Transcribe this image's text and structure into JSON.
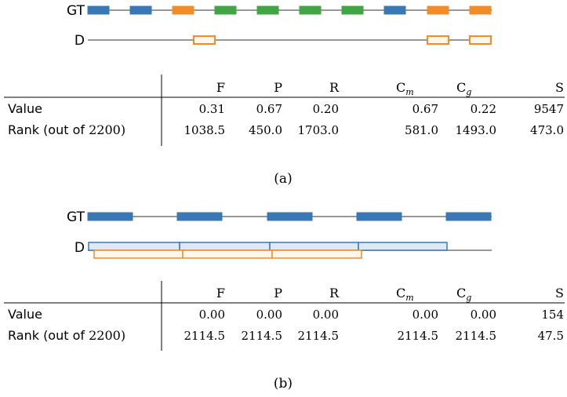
{
  "colors": {
    "blue": "#3a78b5",
    "blue_fill": "#dde9f5",
    "orange": "#f28c28",
    "orange_fill": "#fff6ec",
    "green": "#43a445",
    "line": "#777777",
    "rule": "#000000"
  },
  "panels": [
    {
      "caption": "(a)",
      "tracks": [
        {
          "label": "GT",
          "segments": [
            {
              "color": "blue",
              "fill": "solid"
            },
            {
              "color": "blue",
              "fill": "solid"
            },
            {
              "color": "orange",
              "fill": "solid"
            },
            {
              "color": "green",
              "fill": "solid"
            },
            {
              "color": "green",
              "fill": "solid"
            },
            {
              "color": "green",
              "fill": "solid"
            },
            {
              "color": "green",
              "fill": "solid"
            },
            {
              "color": "blue",
              "fill": "solid"
            },
            {
              "color": "orange",
              "fill": "solid"
            },
            {
              "color": "orange",
              "fill": "solid"
            }
          ]
        },
        {
          "label": "D",
          "segments": [
            {
              "color": "orange",
              "fill": "hollow"
            },
            {
              "color": "orange",
              "fill": "hollow"
            },
            {
              "color": "orange",
              "fill": "hollow"
            }
          ]
        }
      ],
      "table": {
        "columns": [
          "F",
          "P",
          "R",
          "C",
          "C",
          "S"
        ],
        "column_subscripts": [
          "",
          "",
          "",
          "m",
          "g",
          ""
        ],
        "rows": [
          {
            "label": "Value",
            "label_suffix": "",
            "cells": [
              "0.31",
              "0.67",
              "0.20",
              "0.67",
              "0.22",
              "9547"
            ]
          },
          {
            "label": "Rank (out of ",
            "label_suffix": "2200)",
            "cells": [
              "1038.5",
              "450.0",
              "1703.0",
              "581.0",
              "1493.0",
              "473.0"
            ]
          }
        ]
      }
    },
    {
      "caption": "(b)",
      "tracks": [
        {
          "label": "GT",
          "segments": [
            {
              "color": "blue",
              "fill": "solid"
            },
            {
              "color": "blue",
              "fill": "solid"
            },
            {
              "color": "blue",
              "fill": "solid"
            },
            {
              "color": "blue",
              "fill": "solid"
            },
            {
              "color": "blue",
              "fill": "solid"
            }
          ]
        },
        {
          "label": "D",
          "segments": [
            {
              "color": "blue",
              "fill": "light"
            },
            {
              "color": "blue",
              "fill": "light"
            },
            {
              "color": "blue",
              "fill": "light"
            },
            {
              "color": "blue",
              "fill": "light"
            },
            {
              "color": "orange",
              "fill": "hollow"
            },
            {
              "color": "orange",
              "fill": "hollow"
            },
            {
              "color": "orange",
              "fill": "hollow"
            }
          ]
        }
      ],
      "table": {
        "columns": [
          "F",
          "P",
          "R",
          "C",
          "C",
          "S"
        ],
        "column_subscripts": [
          "",
          "",
          "",
          "m",
          "g",
          ""
        ],
        "rows": [
          {
            "label": "Value",
            "label_suffix": "",
            "cells": [
              "0.00",
              "0.00",
              "0.00",
              "0.00",
              "0.00",
              "154"
            ]
          },
          {
            "label": "Rank (out of ",
            "label_suffix": "2200)",
            "cells": [
              "2114.5",
              "2114.5",
              "2114.5",
              "2114.5",
              "2114.5",
              "47.5"
            ]
          }
        ]
      }
    }
  ]
}
